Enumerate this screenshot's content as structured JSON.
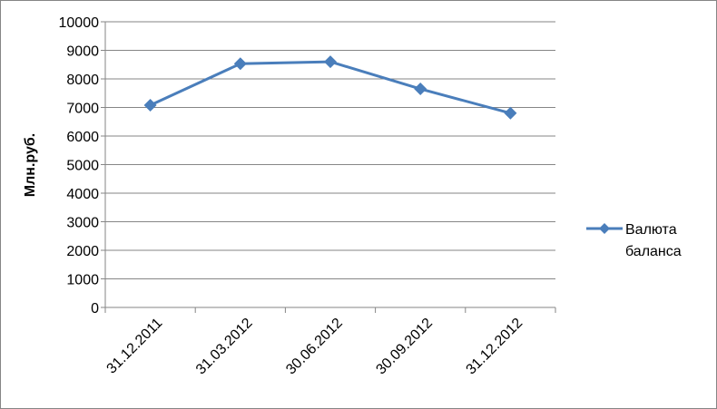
{
  "chart_data": {
    "type": "line",
    "title": "",
    "xlabel": "",
    "ylabel": "Млн.руб.",
    "categories": [
      "31.12.2011",
      "31.03.2012",
      "30.06.2012",
      "30.09.2012",
      "31.12.2012"
    ],
    "series": [
      {
        "name": "Валюта баланса",
        "values": [
          7080,
          8530,
          8600,
          7650,
          6800
        ],
        "color": "#4a7ebb",
        "marker": "diamond"
      }
    ],
    "ylim": [
      0,
      10000
    ],
    "yticks": [
      0,
      1000,
      2000,
      3000,
      4000,
      5000,
      6000,
      7000,
      8000,
      9000,
      10000
    ],
    "grid": true,
    "legend": "right"
  },
  "legend": {
    "line1": "Валюта",
    "line2": "баланса"
  }
}
